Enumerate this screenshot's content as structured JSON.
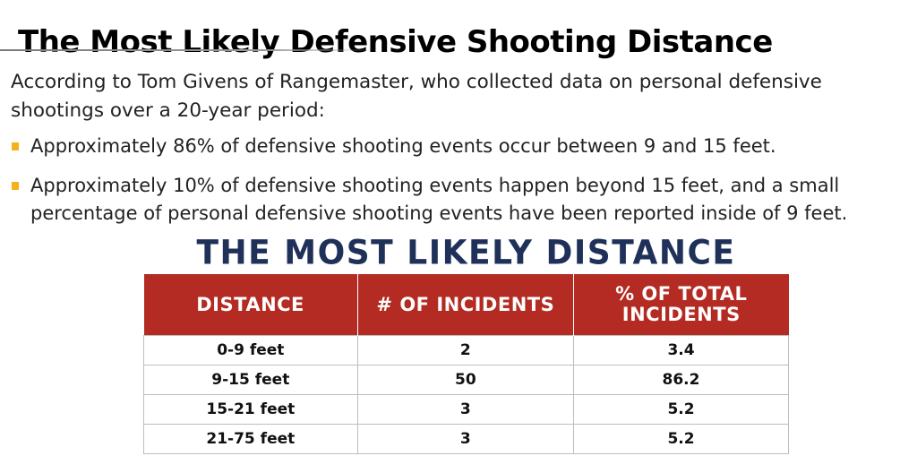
{
  "title": "The Most Likely Defensive Shooting Distance",
  "intro": "According to Tom Givens of Rangemaster, who collected data on personal defensive shootings over a 20-year period:",
  "bullets": [
    {
      "text": "Approximately 86% of defensive shooting events occur between 9 and 15 feet."
    },
    {
      "text": "Approximately 10% of defensive shooting events happen beyond 15 feet, and a small percentage of personal defensive shooting events have been reported inside of 9 feet."
    }
  ],
  "bullet_color": "#f2b21b",
  "table": {
    "heading": "THE MOST LIKELY DISTANCE",
    "heading_color": "#1f3159",
    "header_color": "#b32b22",
    "headers": {
      "distance": "DISTANCE",
      "incidents": "# OF INCIDENTS",
      "percent_line1": "% OF TOTAL",
      "percent_line2": "INCIDENTS"
    },
    "rows": [
      {
        "distance": "0-9 feet",
        "incidents": "2",
        "percent": "3.4"
      },
      {
        "distance": "9-15 feet",
        "incidents": "50",
        "percent": "86.2"
      },
      {
        "distance": "15-21 feet",
        "incidents": "3",
        "percent": "5.2"
      },
      {
        "distance": "21-75 feet",
        "incidents": "3",
        "percent": "5.2"
      }
    ]
  }
}
